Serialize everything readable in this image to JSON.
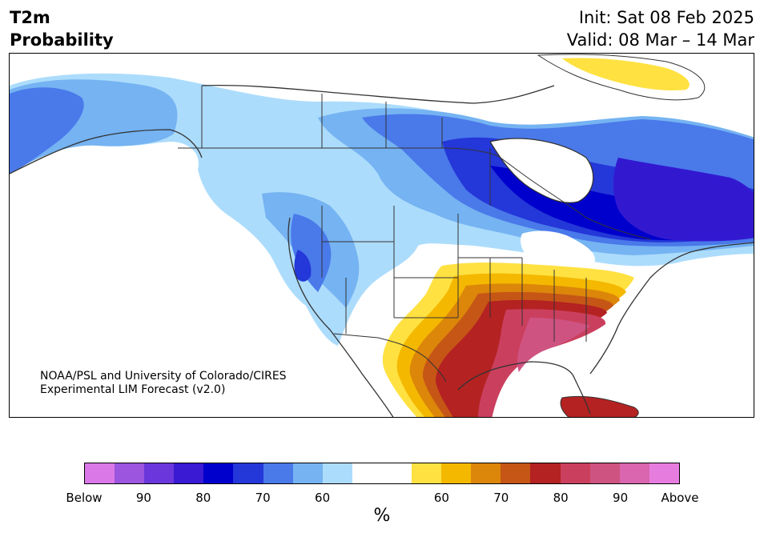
{
  "header": {
    "title_line1": "T2m",
    "title_line2": "Probability",
    "init_text": "Init: Sat 08 Feb 2025",
    "valid_text": "Valid: 08 Mar – 14 Mar"
  },
  "map": {
    "credit_line1": "NOAA/PSL and University of Colorado/CIRES",
    "credit_line2": "Experimental LIM Forecast (v2.0)",
    "palette": {
      "white": "#ffffff",
      "below_60": "#acdcfc",
      "below_65": "#75b3f2",
      "below_70": "#4a79ea",
      "below_75": "#2437d8",
      "below_80": "#0000cc",
      "below_85": "#3219d0",
      "above_60": "#ffe141",
      "above_65": "#f4b800",
      "above_70": "#dc860a",
      "above_75": "#c65616",
      "above_80": "#b42222",
      "above_85": "#cb3f5e",
      "above_90": "#cf5381",
      "borders": "#333333"
    }
  },
  "colorbar": {
    "colors": [
      "#d978e6",
      "#9b55de",
      "#6b37dc",
      "#3a1ad2",
      "#0000cc",
      "#2437d8",
      "#4a79ea",
      "#75b3f2",
      "#acdcfc",
      "#ffffff",
      "#ffffff",
      "#ffe141",
      "#f4b800",
      "#dc860a",
      "#c65616",
      "#b42222",
      "#cb3f5e",
      "#cf5381",
      "#d966ae",
      "#e77cdf"
    ],
    "tick_labels": [
      "Below",
      "90",
      "80",
      "70",
      "60",
      "60",
      "70",
      "80",
      "90",
      "Above"
    ],
    "units": "%"
  }
}
